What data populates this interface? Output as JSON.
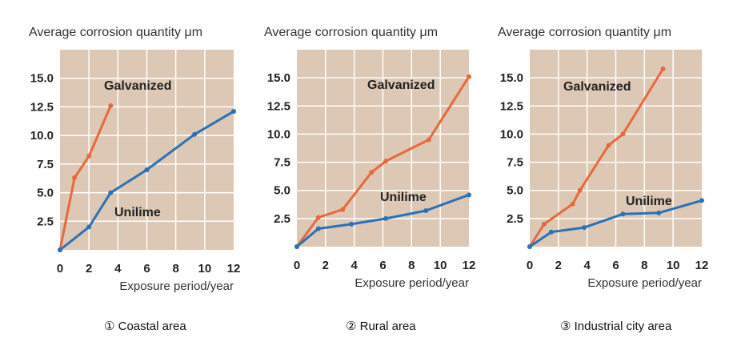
{
  "colors": {
    "plot_bg": "#dcc8b4",
    "grid": "#ffffff",
    "galvanized": "#e8693c",
    "unilime": "#2a72b8"
  },
  "chart_data": [
    {
      "type": "line",
      "title": "① Coastal area",
      "ylabel": "Average corrosion quantity  μm",
      "xlabel": "Exposure period/year",
      "xlim": [
        0,
        12
      ],
      "ylim": [
        0,
        17.5
      ],
      "xticks": [
        "0",
        "2",
        "4",
        "6",
        "8",
        "10",
        "12"
      ],
      "yticks": [
        "2.5",
        "5.0",
        "7.5",
        "10.0",
        "12.5",
        "15.0"
      ],
      "series": [
        {
          "name": "Galvanized",
          "color": "#e8693c",
          "x": [
            0,
            1,
            2,
            3.5
          ],
          "y": [
            0,
            6.3,
            8.2,
            12.6
          ]
        },
        {
          "name": "Unilime",
          "color": "#2a72b8",
          "x": [
            0,
            2,
            3.5,
            6,
            9.3,
            12
          ],
          "y": [
            0,
            2,
            5.0,
            7.0,
            10.1,
            12.1
          ]
        }
      ]
    },
    {
      "type": "line",
      "title": "② Rural area",
      "ylabel": "Average corrosion quantity  μm",
      "xlabel": "Exposure period/year",
      "xlim": [
        0,
        12
      ],
      "ylim": [
        0,
        17.5
      ],
      "xticks": [
        "0",
        "2",
        "4",
        "6",
        "8",
        "10",
        "12"
      ],
      "yticks": [
        "2.5",
        "5.0",
        "7.5",
        "10.0",
        "12.5",
        "15.0"
      ],
      "series": [
        {
          "name": "Galvanized",
          "color": "#e8693c",
          "x": [
            0,
            1.5,
            3.2,
            5.2,
            6.2,
            9.2,
            12
          ],
          "y": [
            0,
            2.6,
            3.3,
            6.6,
            7.6,
            9.5,
            15.1
          ]
        },
        {
          "name": "Unilime",
          "color": "#2a72b8",
          "x": [
            0,
            1.5,
            3.8,
            6.2,
            9.0,
            12
          ],
          "y": [
            0,
            1.6,
            2.0,
            2.5,
            3.2,
            4.6
          ]
        }
      ]
    },
    {
      "type": "line",
      "title": "③ Industrial city area",
      "ylabel": "Average corrosion quantity  μm",
      "xlabel": "Exposure period/year",
      "xlim": [
        0,
        12
      ],
      "ylim": [
        0,
        17.5
      ],
      "xticks": [
        "0",
        "2",
        "4",
        "6",
        "8",
        "10",
        "12"
      ],
      "yticks": [
        "2.5",
        "5.0",
        "7.5",
        "10.0",
        "12.5",
        "15.0"
      ],
      "series": [
        {
          "name": "Galvanized",
          "color": "#e8693c",
          "x": [
            0,
            1,
            3,
            3.5,
            5.5,
            6.5,
            9.3
          ],
          "y": [
            0,
            2.0,
            3.8,
            5.0,
            9.0,
            10.0,
            15.8
          ]
        },
        {
          "name": "Unilime",
          "color": "#2a72b8",
          "x": [
            0,
            1.5,
            3.8,
            6.5,
            9,
            12
          ],
          "y": [
            0,
            1.3,
            1.7,
            2.9,
            3.0,
            4.1
          ]
        }
      ]
    }
  ]
}
